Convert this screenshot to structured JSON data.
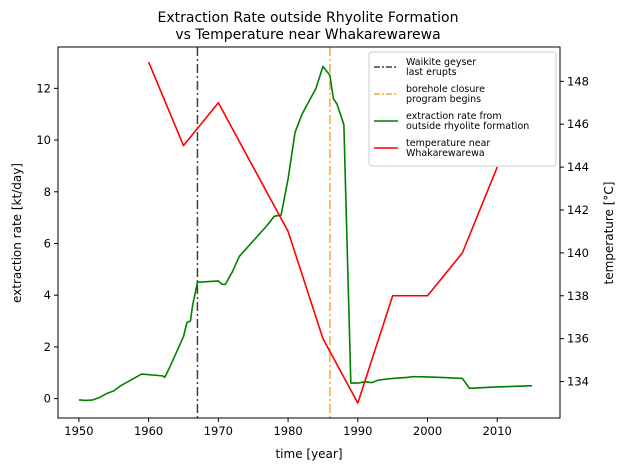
{
  "chart_data": {
    "type": "line",
    "title_line1": "Extraction Rate outside Rhyolite Formation",
    "title_line2": "vs Temperature near Whakarewarewa",
    "xlabel": "time [year]",
    "ylabel_left": "extraction rate [kt/day]",
    "ylabel_right": "temperature [$^\\circ$C]",
    "ylabel_right_display": "temperature [°C]",
    "xlim": [
      1947,
      2019
    ],
    "ylim_left": [
      -0.75,
      13.6
    ],
    "ylim_right": [
      132.3,
      149.6
    ],
    "x_ticks": [
      1950,
      1960,
      1970,
      1980,
      1990,
      2000,
      2010
    ],
    "y_ticks_left": [
      0,
      2,
      4,
      6,
      8,
      10,
      12
    ],
    "y_ticks_right": [
      134,
      136,
      138,
      140,
      142,
      144,
      146,
      148
    ],
    "legend_position": "top-right",
    "vlines": [
      {
        "x": 1967,
        "color": "#404040",
        "style": "dashdot",
        "label_lines": [
          "Waikite geyser",
          "last erupts"
        ]
      },
      {
        "x": 1986,
        "color": "#ffa040",
        "style": "dashdot",
        "label_lines": [
          "borehole closure",
          "program begins"
        ]
      }
    ],
    "series": [
      {
        "name": "extraction rate from outside rhyolite formation",
        "label_lines": [
          "extraction rate from",
          "outside rhyolite formation"
        ],
        "axis": "left",
        "color": "#008000",
        "x": [
          1950,
          1951,
          1952,
          1953,
          1954,
          1955,
          1955.5,
          1956,
          1957,
          1958,
          1959,
          1962,
          1962.3,
          1963,
          1964,
          1965,
          1965.5,
          1966,
          1966.3,
          1967,
          1970,
          1970.5,
          1971,
          1972,
          1973,
          1974,
          1975,
          1976,
          1977,
          1978,
          1979,
          1980,
          1981,
          1982,
          1983,
          1984,
          1985,
          1986,
          1986.5,
          1987,
          1988,
          1989,
          1990,
          1991,
          1992,
          1993,
          1995,
          1997,
          1998,
          2000,
          2002,
          2005,
          2006,
          2010,
          2015
        ],
        "y": [
          -0.05,
          -0.07,
          -0.05,
          0.05,
          0.2,
          0.3,
          0.4,
          0.5,
          0.65,
          0.8,
          0.95,
          0.88,
          0.82,
          1.2,
          1.8,
          2.4,
          2.95,
          3.0,
          3.6,
          4.5,
          4.55,
          4.42,
          4.42,
          4.9,
          5.5,
          5.8,
          6.1,
          6.4,
          6.7,
          7.05,
          7.1,
          8.5,
          10.3,
          11.0,
          11.5,
          12.0,
          12.85,
          12.5,
          11.6,
          11.4,
          10.6,
          0.6,
          0.6,
          0.65,
          0.62,
          0.72,
          0.78,
          0.82,
          0.85,
          0.84,
          0.82,
          0.78,
          0.4,
          0.45,
          0.5
        ]
      },
      {
        "name": "temperature near Whakarewarewa",
        "label_lines": [
          "temperature near",
          "Whakarewarewa"
        ],
        "axis": "right",
        "color": "#ff0000",
        "x": [
          1960,
          1965,
          1970,
          1975,
          1980,
          1985,
          1990,
          1995,
          2000,
          2005,
          2010
        ],
        "y": [
          148.9,
          145.0,
          147.0,
          144.0,
          141.0,
          136.0,
          133.0,
          138.0,
          138.0,
          140.0,
          144.0
        ]
      }
    ]
  }
}
